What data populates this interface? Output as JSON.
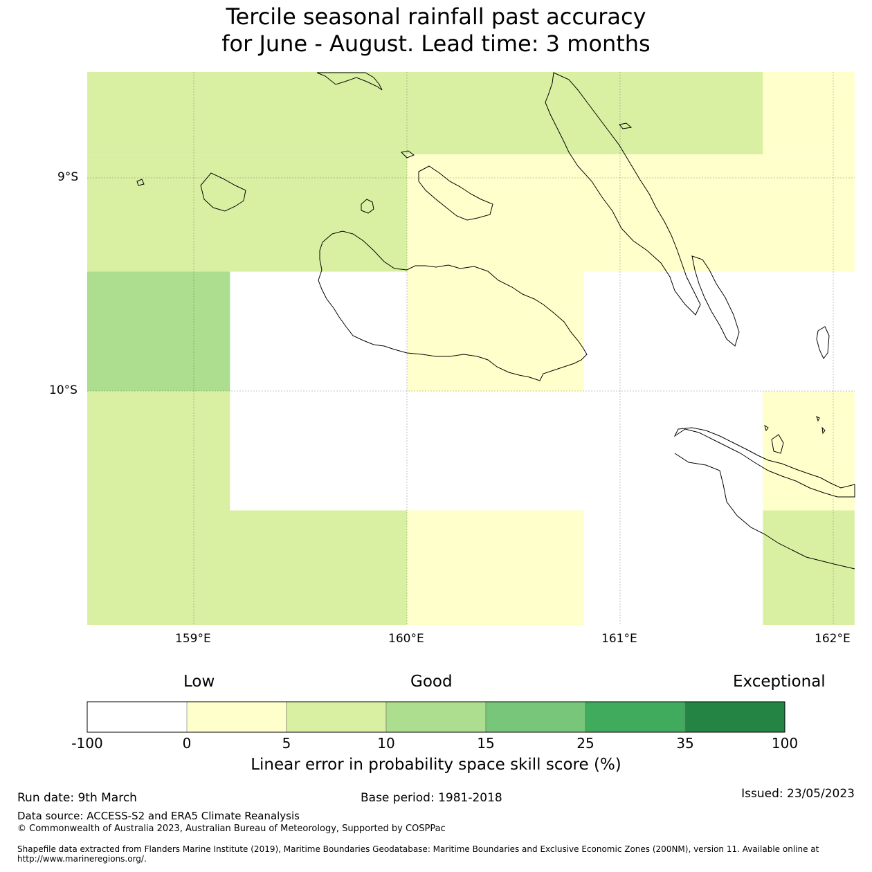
{
  "title": {
    "line1": "Tercile seasonal rainfall past accuracy",
    "line2": "for June - August. Lead time: 3 months"
  },
  "map": {
    "lat_labels": [
      "9°S",
      "10°S"
    ],
    "lon_labels": [
      "159°E",
      "160°E",
      "161°E",
      "162°E"
    ],
    "lon_range": [
      158.5,
      162.1
    ],
    "lat_range": [
      -11.1,
      -8.5
    ],
    "cells": [
      {
        "lon": [
          158.5,
          160.0
        ],
        "lat": [
          -8.89,
          -8.5
        ],
        "class": 2
      },
      {
        "lon": [
          160.0,
          161.67
        ],
        "lat": [
          -8.89,
          -8.5
        ],
        "class": 2
      },
      {
        "lon": [
          161.67,
          162.1
        ],
        "lat": [
          -8.89,
          -8.5
        ],
        "class": 1
      },
      {
        "lon": [
          158.5,
          160.0
        ],
        "lat": [
          -9.44,
          -8.89
        ],
        "class": 2
      },
      {
        "lon": [
          160.0,
          162.1
        ],
        "lat": [
          -9.44,
          -8.89
        ],
        "class": 1
      },
      {
        "lon": [
          158.5,
          159.17
        ],
        "lat": [
          -10.0,
          -9.44
        ],
        "class": 3
      },
      {
        "lon": [
          160.0,
          160.83
        ],
        "lat": [
          -10.0,
          -9.44
        ],
        "class": 1
      },
      {
        "lon": [
          158.5,
          159.17
        ],
        "lat": [
          -10.56,
          -10.0
        ],
        "class": 2
      },
      {
        "lon": [
          161.67,
          162.1
        ],
        "lat": [
          -10.56,
          -10.0
        ],
        "class": 1
      },
      {
        "lon": [
          158.5,
          160.0
        ],
        "lat": [
          -11.1,
          -10.56
        ],
        "class": 2
      },
      {
        "lon": [
          160.0,
          160.83
        ],
        "lat": [
          -11.1,
          -10.56
        ],
        "class": 1
      },
      {
        "lon": [
          161.67,
          162.1
        ],
        "lat": [
          -11.1,
          -10.56
        ],
        "class": 2
      }
    ]
  },
  "colorbar": {
    "low_label": "Low",
    "good_label": "Good",
    "exceptional_label": "Exceptional",
    "ticks": [
      "-100",
      "0",
      "5",
      "10",
      "15",
      "25",
      "35",
      "100"
    ],
    "colors": [
      "#ffffff",
      "#ffffcc",
      "#d9f0a3",
      "#addd8e",
      "#78c679",
      "#41ab5d",
      "#238443"
    ],
    "label": "Linear error in probability space skill score (%)"
  },
  "footer": {
    "run_date": "Run date: 9th March",
    "base_period": "Base period: 1981-2018",
    "issued": "Issued: 23/05/2023",
    "data_source": "Data source: ACCESS-S2 and ERA5 Climate Reanalysis",
    "copyright": "© Commonwealth of Australia 2023, Australian Bureau of Meteorology, Supported by COSPPac",
    "shapefile": "Shapefile data extracted from Flanders Marine Institute (2019), Maritime Boundaries Geodatabase: Maritime Boundaries and Exclusive Economic Zones (200NM), version 11. Available online at http://www.marineregions.org/."
  }
}
